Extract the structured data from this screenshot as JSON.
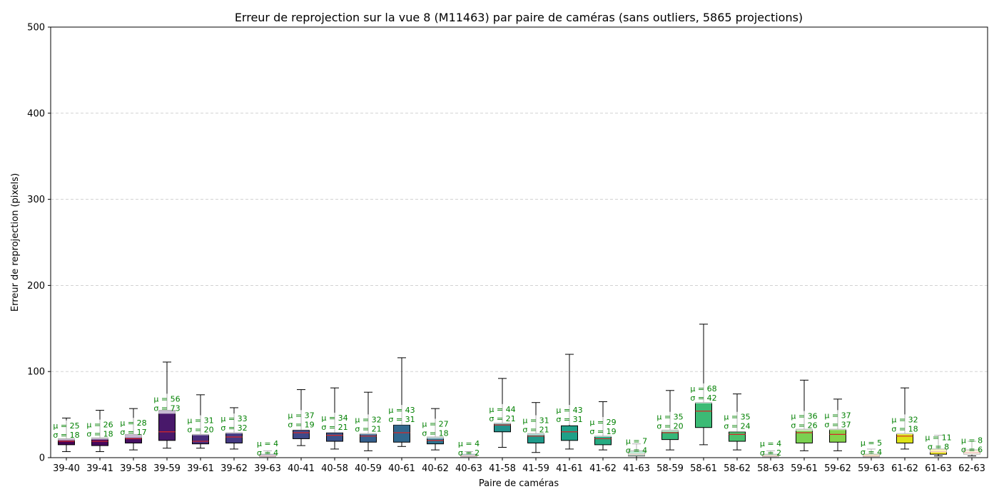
{
  "chart_data": {
    "type": "box",
    "title": "Erreur de reprojection sur la vue 8 (M11463) par paire de caméras (sans outliers, 5865 projections)",
    "xlabel": "Paire de caméras",
    "ylabel": "Erreur de reprojection (pixels)",
    "ylim": [
      0,
      500
    ],
    "yticks": [
      "0",
      "100",
      "200",
      "300",
      "400",
      "500"
    ],
    "grid": "y-dashed",
    "median_color": "#d62728",
    "stat_color": "#008000",
    "categories": [
      "39-40",
      "39-41",
      "39-58",
      "39-59",
      "39-61",
      "39-62",
      "39-63",
      "40-41",
      "40-58",
      "40-59",
      "40-61",
      "40-62",
      "40-63",
      "41-58",
      "41-59",
      "41-61",
      "41-62",
      "41-63",
      "58-59",
      "58-61",
      "58-62",
      "58-63",
      "59-61",
      "59-62",
      "59-63",
      "61-62",
      "61-63",
      "62-63"
    ],
    "boxes": [
      {
        "lw": 7,
        "q1": 15,
        "med": 19,
        "q3": 22,
        "uw": 46,
        "color": "#440154",
        "mean_label": "μ = 25",
        "std_label": "σ = 18",
        "mean": 25,
        "std": 18
      },
      {
        "lw": 7,
        "q1": 14,
        "med": 19,
        "q3": 23,
        "uw": 55,
        "color": "#46085c",
        "mean_label": "μ = 26",
        "std_label": "σ = 18",
        "mean": 26,
        "std": 18
      },
      {
        "lw": 9,
        "q1": 17,
        "med": 22,
        "q3": 27,
        "uw": 57,
        "color": "#471063",
        "mean_label": "μ = 28",
        "std_label": "σ = 17",
        "mean": 28,
        "std": 17
      },
      {
        "lw": 11,
        "q1": 20,
        "med": 30,
        "q3": 55,
        "uw": 111,
        "color": "#48186a",
        "mean_label": "μ = 56",
        "std_label": "σ = 73",
        "mean": 56,
        "std": 73
      },
      {
        "lw": 11,
        "q1": 16,
        "med": 19,
        "q3": 27,
        "uw": 73,
        "color": "#472d7b",
        "mean_label": "μ = 31",
        "std_label": "σ = 20",
        "mean": 31,
        "std": 20
      },
      {
        "lw": 10,
        "q1": 17,
        "med": 24,
        "q3": 29,
        "uw": 58,
        "color": "#443a83",
        "mean_label": "μ = 33",
        "std_label": "σ = 32",
        "mean": 33,
        "std": 32
      },
      {
        "lw": 0,
        "q1": 1,
        "med": 2,
        "q3": 4,
        "uw": 8,
        "color": "#414487",
        "mean_label": "μ = 4",
        "std_label": "σ = 4",
        "mean": 4,
        "std": 4
      },
      {
        "lw": 14,
        "q1": 22,
        "med": 29,
        "q3": 32,
        "uw": 79,
        "color": "#3e4989",
        "mean_label": "μ = 37",
        "std_label": "σ = 19",
        "mean": 37,
        "std": 19
      },
      {
        "lw": 10,
        "q1": 19,
        "med": 26,
        "q3": 29,
        "uw": 81,
        "color": "#3b528b",
        "mean_label": "μ = 34",
        "std_label": "σ = 21",
        "mean": 34,
        "std": 21
      },
      {
        "lw": 8,
        "q1": 18,
        "med": 25,
        "q3": 28,
        "uw": 76,
        "color": "#355f8d",
        "mean_label": "μ = 32",
        "std_label": "σ = 21",
        "mean": 32,
        "std": 21
      },
      {
        "lw": 13,
        "q1": 18,
        "med": 29,
        "q3": 38,
        "uw": 116,
        "color": "#31688e",
        "mean_label": "μ = 43",
        "std_label": "σ = 31",
        "mean": 43,
        "std": 31
      },
      {
        "lw": 9,
        "q1": 16,
        "med": 20,
        "q3": 24,
        "uw": 57,
        "color": "#2c728e",
        "mean_label": "μ = 27",
        "std_label": "σ = 18",
        "mean": 27,
        "std": 18
      },
      {
        "lw": 0,
        "q1": 1,
        "med": 2,
        "q3": 4,
        "uw": 7,
        "color": "#287c8e",
        "mean_label": "μ = 4",
        "std_label": "σ = 2",
        "mean": 4,
        "std": 2
      },
      {
        "lw": 12,
        "q1": 30,
        "med": 38,
        "q3": 40,
        "uw": 92,
        "color": "#21918c",
        "mean_label": "μ = 44",
        "std_label": "σ = 21",
        "mean": 44,
        "std": 21
      },
      {
        "lw": 6,
        "q1": 17,
        "med": 25,
        "q3": 28,
        "uw": 64,
        "color": "#1f9a8a",
        "mean_label": "μ = 31",
        "std_label": "σ = 21",
        "mean": 31,
        "std": 21
      },
      {
        "lw": 10,
        "q1": 20,
        "med": 30,
        "q3": 37,
        "uw": 120,
        "color": "#1fa088",
        "mean_label": "μ = 43",
        "std_label": "σ = 31",
        "mean": 43,
        "std": 31
      },
      {
        "lw": 9,
        "q1": 15,
        "med": 22,
        "q3": 25,
        "uw": 65,
        "color": "#25ab82",
        "mean_label": "μ = 29",
        "std_label": "σ = 19",
        "mean": 29,
        "std": 19
      },
      {
        "lw": 0,
        "q1": 2,
        "med": 4,
        "q3": 8,
        "uw": 16,
        "color": "#35b779",
        "mean_label": "μ = 7",
        "std_label": "σ = 4",
        "mean": 7,
        "std": 4
      },
      {
        "lw": 9,
        "q1": 21,
        "med": 29,
        "q3": 32,
        "uw": 78,
        "color": "#35b779",
        "mean_label": "μ = 35",
        "std_label": "σ = 20",
        "mean": 35,
        "std": 20
      },
      {
        "lw": 15,
        "q1": 35,
        "med": 54,
        "q3": 64,
        "uw": 155,
        "color": "#3cbb75",
        "mean_label": "μ = 68",
        "std_label": "σ = 42",
        "mean": 68,
        "std": 42
      },
      {
        "lw": 9,
        "q1": 19,
        "med": 27,
        "q3": 30,
        "uw": 74,
        "color": "#4ac16d",
        "mean_label": "μ = 35",
        "std_label": "σ = 24",
        "mean": 35,
        "std": 24
      },
      {
        "lw": 0,
        "q1": 1,
        "med": 2,
        "q3": 4,
        "uw": 8,
        "color": "#5ec962",
        "mean_label": "μ = 4",
        "std_label": "σ = 2",
        "mean": 4,
        "std": 2
      },
      {
        "lw": 8,
        "q1": 17,
        "med": 29,
        "q3": 33,
        "uw": 90,
        "color": "#7ad151",
        "mean_label": "μ = 36",
        "std_label": "σ = 26",
        "mean": 36,
        "std": 26
      },
      {
        "lw": 8,
        "q1": 18,
        "med": 27,
        "q3": 33,
        "uw": 68,
        "color": "#84d44b",
        "mean_label": "μ = 37",
        "std_label": "σ = 37",
        "mean": 37,
        "std": 37
      },
      {
        "lw": 0,
        "q1": 1,
        "med": 2,
        "q3": 4,
        "uw": 10,
        "color": "#b5de2b",
        "mean_label": "μ = 5",
        "std_label": "σ = 4",
        "mean": 5,
        "std": 4
      },
      {
        "lw": 10,
        "q1": 17,
        "med": 25,
        "q3": 28,
        "uw": 81,
        "color": "#dde318",
        "mean_label": "μ = 32",
        "std_label": "σ = 18",
        "mean": 32,
        "std": 18
      },
      {
        "lw": 2,
        "q1": 4,
        "med": 7,
        "q3": 10,
        "uw": 26,
        "color": "#f1e51d",
        "mean_label": "μ = 11",
        "std_label": "σ = 8",
        "mean": 11,
        "std": 8
      },
      {
        "lw": 2,
        "q1": 4,
        "med": 6,
        "q3": 9,
        "uw": 19,
        "color": "#fde0a0",
        "mean_label": "μ = 8",
        "std_label": "σ = 6",
        "mean": 8,
        "std": 6
      }
    ]
  }
}
